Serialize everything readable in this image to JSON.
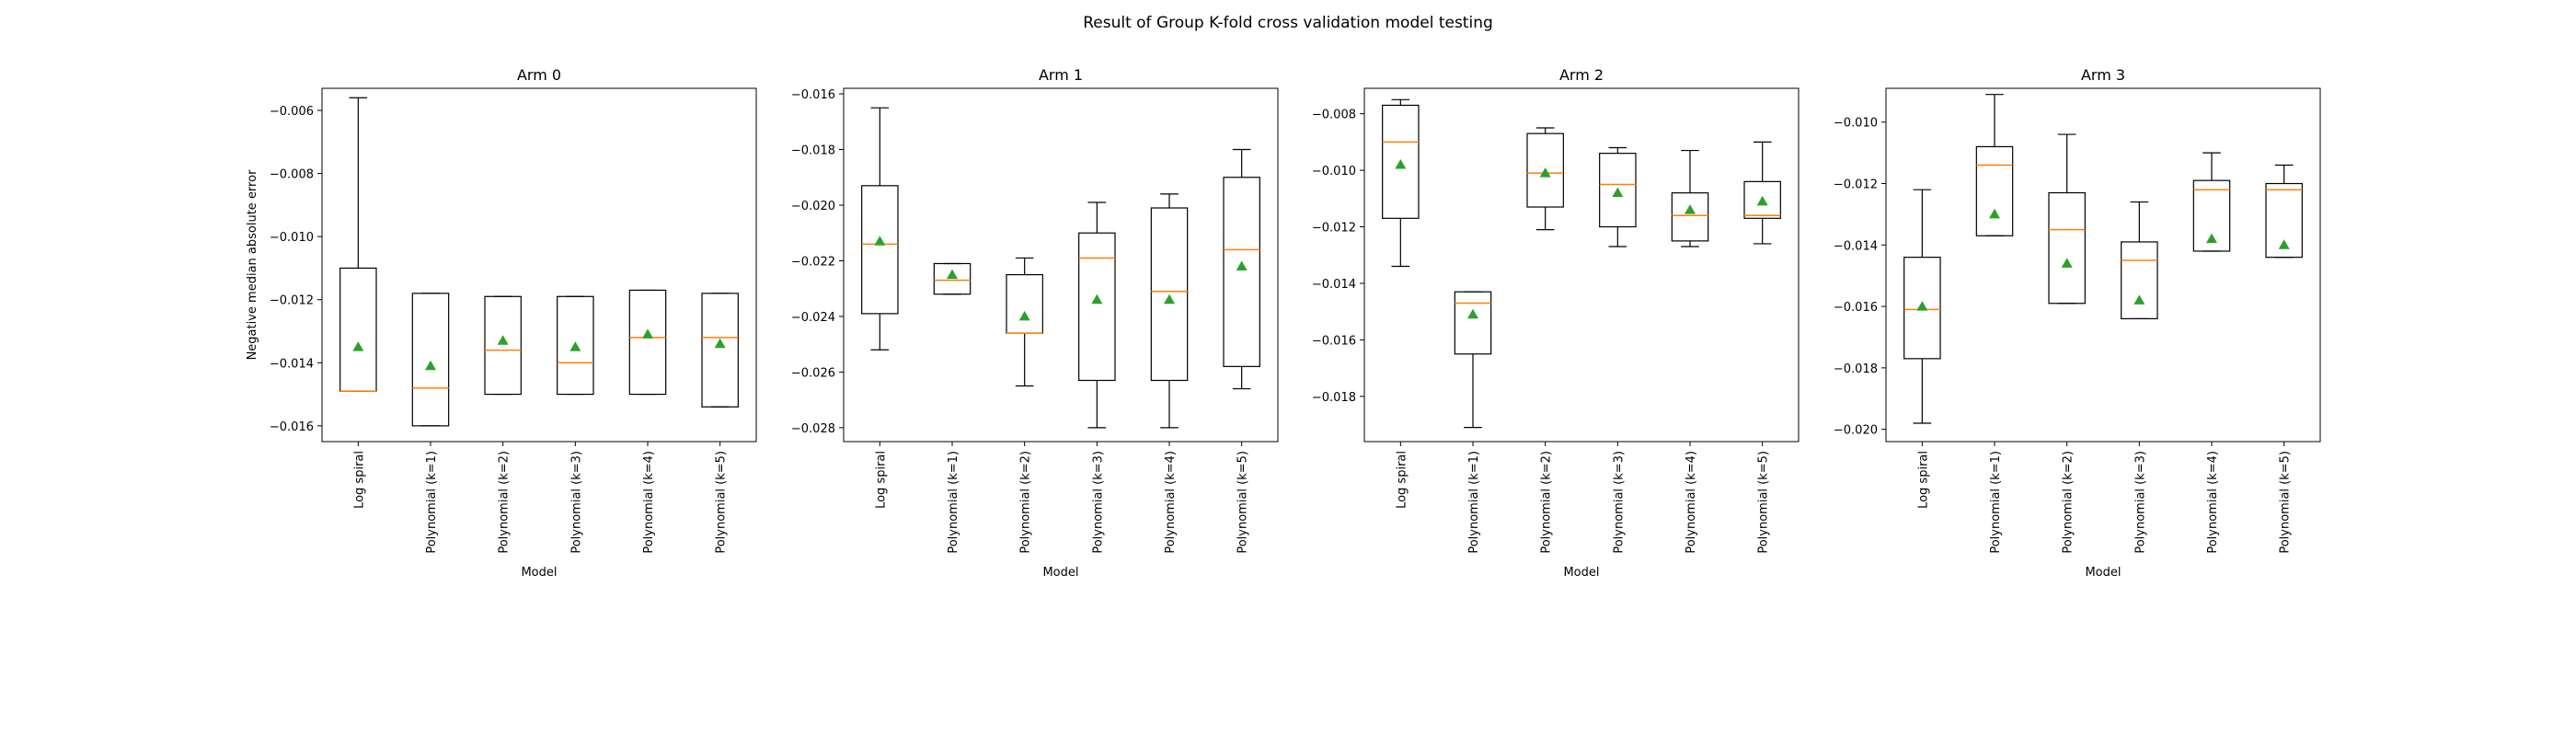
{
  "figure_title": "Result of Group K-fold cross validation model testing",
  "colors": {
    "box": "#000000",
    "median": "#ff7f0e",
    "mean": "#2ca02c",
    "axes": "#000000"
  },
  "chart_data": [
    {
      "type": "box",
      "title": "Arm 0",
      "xlabel": "Model",
      "ylabel": "Negative median absolute error",
      "ylim": [
        -0.0165,
        -0.0053
      ],
      "yticks": [
        -0.016,
        -0.014,
        -0.012,
        -0.01,
        -0.008,
        -0.006
      ],
      "ytick_labels": [
        "−0.016",
        "−0.014",
        "−0.012",
        "−0.010",
        "−0.008",
        "−0.006"
      ],
      "categories": [
        "Log spiral",
        "Polynomial (k=1)",
        "Polynomial (k=2)",
        "Polynomial (k=3)",
        "Polynomial (k=4)",
        "Polynomial (k=5)"
      ],
      "boxes": [
        {
          "whislo": -0.0149,
          "q1": -0.0149,
          "med": -0.0149,
          "q3": -0.011,
          "whishi": -0.0056,
          "mean": -0.0135
        },
        {
          "whislo": -0.016,
          "q1": -0.016,
          "med": -0.0148,
          "q3": -0.0118,
          "whishi": -0.0118,
          "mean": -0.0141
        },
        {
          "whislo": -0.015,
          "q1": -0.015,
          "med": -0.0136,
          "q3": -0.0119,
          "whishi": -0.0119,
          "mean": -0.0133
        },
        {
          "whislo": -0.015,
          "q1": -0.015,
          "med": -0.014,
          "q3": -0.0119,
          "whishi": -0.0119,
          "mean": -0.0135
        },
        {
          "whislo": -0.015,
          "q1": -0.015,
          "med": -0.0132,
          "q3": -0.0117,
          "whishi": -0.0117,
          "mean": -0.0131
        },
        {
          "whislo": -0.0154,
          "q1": -0.0154,
          "med": -0.0132,
          "q3": -0.0118,
          "whishi": -0.0118,
          "mean": -0.0134
        }
      ]
    },
    {
      "type": "box",
      "title": "Arm 1",
      "xlabel": "Model",
      "ylabel": "",
      "ylim": [
        -0.0285,
        -0.0158
      ],
      "yticks": [
        -0.028,
        -0.026,
        -0.024,
        -0.022,
        -0.02,
        -0.018,
        -0.016
      ],
      "ytick_labels": [
        "−0.028",
        "−0.026",
        "−0.024",
        "−0.022",
        "−0.020",
        "−0.018",
        "−0.016"
      ],
      "categories": [
        "Log spiral",
        "Polynomial (k=1)",
        "Polynomial (k=2)",
        "Polynomial (k=3)",
        "Polynomial (k=4)",
        "Polynomial (k=5)"
      ],
      "boxes": [
        {
          "whislo": -0.0252,
          "q1": -0.0239,
          "med": -0.0214,
          "q3": -0.0193,
          "whishi": -0.0165,
          "mean": -0.0213
        },
        {
          "whislo": -0.0232,
          "q1": -0.0232,
          "med": -0.0227,
          "q3": -0.0221,
          "whishi": -0.0221,
          "mean": -0.0225
        },
        {
          "whislo": -0.0265,
          "q1": -0.0246,
          "med": -0.0246,
          "q3": -0.0225,
          "whishi": -0.0219,
          "mean": -0.024
        },
        {
          "whislo": -0.028,
          "q1": -0.0263,
          "med": -0.0219,
          "q3": -0.021,
          "whishi": -0.0199,
          "mean": -0.0234
        },
        {
          "whislo": -0.028,
          "q1": -0.0263,
          "med": -0.0231,
          "q3": -0.0201,
          "whishi": -0.0196,
          "mean": -0.0234
        },
        {
          "whislo": -0.0266,
          "q1": -0.0258,
          "med": -0.0216,
          "q3": -0.019,
          "whishi": -0.018,
          "mean": -0.0222
        }
      ]
    },
    {
      "type": "box",
      "title": "Arm 2",
      "xlabel": "Model",
      "ylabel": "",
      "ylim": [
        -0.0196,
        -0.0071
      ],
      "yticks": [
        -0.018,
        -0.016,
        -0.014,
        -0.012,
        -0.01,
        -0.008
      ],
      "ytick_labels": [
        "−0.018",
        "−0.016",
        "−0.014",
        "−0.012",
        "−0.010",
        "−0.008"
      ],
      "categories": [
        "Log spiral",
        "Polynomial (k=1)",
        "Polynomial (k=2)",
        "Polynomial (k=3)",
        "Polynomial (k=4)",
        "Polynomial (k=5)"
      ],
      "boxes": [
        {
          "whislo": -0.0134,
          "q1": -0.0117,
          "med": -0.009,
          "q3": -0.0077,
          "whishi": -0.0075,
          "mean": -0.0098
        },
        {
          "whislo": -0.0191,
          "q1": -0.0165,
          "med": -0.0147,
          "q3": -0.0143,
          "whishi": -0.0143,
          "mean": -0.0151
        },
        {
          "whislo": -0.0121,
          "q1": -0.0113,
          "med": -0.0101,
          "q3": -0.0087,
          "whishi": -0.0085,
          "mean": -0.0101
        },
        {
          "whislo": -0.0127,
          "q1": -0.012,
          "med": -0.0105,
          "q3": -0.0094,
          "whishi": -0.0092,
          "mean": -0.0108
        },
        {
          "whislo": -0.0127,
          "q1": -0.0125,
          "med": -0.0116,
          "q3": -0.0108,
          "whishi": -0.0093,
          "mean": -0.0114
        },
        {
          "whislo": -0.0126,
          "q1": -0.0117,
          "med": -0.0116,
          "q3": -0.0104,
          "whishi": -0.009,
          "mean": -0.0111
        }
      ]
    },
    {
      "type": "box",
      "title": "Arm 3",
      "xlabel": "Model",
      "ylabel": "",
      "ylim": [
        -0.0204,
        -0.0089
      ],
      "yticks": [
        -0.02,
        -0.018,
        -0.016,
        -0.014,
        -0.012,
        -0.01
      ],
      "ytick_labels": [
        "−0.020",
        "−0.018",
        "−0.016",
        "−0.014",
        "−0.012",
        "−0.010"
      ],
      "categories": [
        "Log spiral",
        "Polynomial (k=1)",
        "Polynomial (k=2)",
        "Polynomial (k=3)",
        "Polynomial (k=4)",
        "Polynomial (k=5)"
      ],
      "boxes": [
        {
          "whislo": -0.0198,
          "q1": -0.0177,
          "med": -0.0161,
          "q3": -0.0144,
          "whishi": -0.0122,
          "mean": -0.016
        },
        {
          "whislo": -0.0137,
          "q1": -0.0137,
          "med": -0.0114,
          "q3": -0.0108,
          "whishi": -0.0091,
          "mean": -0.013
        },
        {
          "whislo": -0.0159,
          "q1": -0.0159,
          "med": -0.0135,
          "q3": -0.0123,
          "whishi": -0.0104,
          "mean": -0.0146
        },
        {
          "whislo": -0.0164,
          "q1": -0.0164,
          "med": -0.0145,
          "q3": -0.0139,
          "whishi": -0.0126,
          "mean": -0.0158
        },
        {
          "whislo": -0.0142,
          "q1": -0.0142,
          "med": -0.0122,
          "q3": -0.0119,
          "whishi": -0.011,
          "mean": -0.0138
        },
        {
          "whislo": -0.0144,
          "q1": -0.0144,
          "med": -0.0122,
          "q3": -0.012,
          "whishi": -0.0114,
          "mean": -0.014
        }
      ]
    }
  ]
}
